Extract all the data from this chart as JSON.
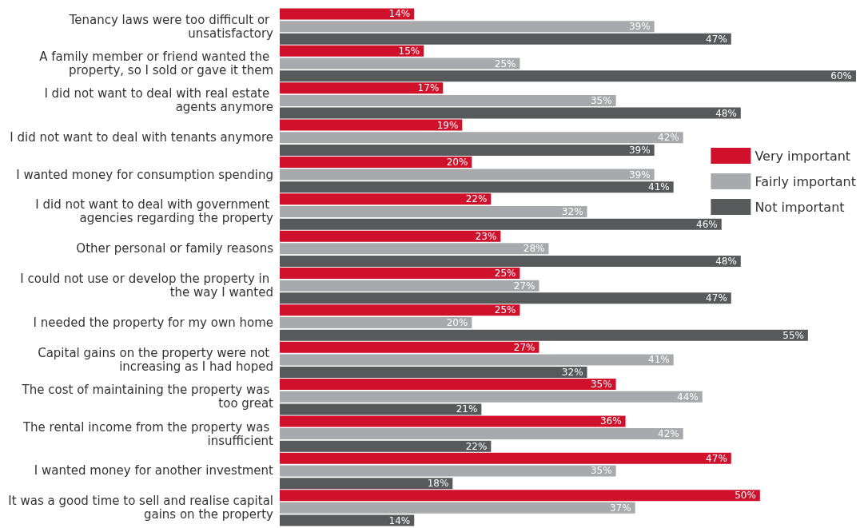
{
  "chart_data": {
    "type": "bar",
    "orientation": "horizontal",
    "legend": "right",
    "categories": [
      "Tenancy laws were too difficult or unsatisfactory",
      "A family member or friend wanted the property, so I sold or gave it them",
      "I did not want to deal with real estate agents anymore",
      "I did not want to deal with tenants anymore",
      "I wanted money for consumption spending",
      "I did not want to deal with government agencies regarding the property",
      "Other personal or family reasons",
      "I could not use or develop the property in the way I wanted",
      "I needed the property for my own home",
      "Capital gains on the property were not increasing as I had hoped",
      "The cost of maintaining the property was too great",
      "The rental income from the property was insufficient",
      "I wanted money for another investment",
      "It was a good time to sell and realise capital gains on the property"
    ],
    "series": [
      {
        "name": "Very important",
        "color": "#d0112b",
        "values": [
          14,
          15,
          17,
          19,
          20,
          22,
          23,
          25,
          25,
          27,
          35,
          36,
          47,
          50
        ],
        "value_labels": [
          "14%",
          "15%",
          "17%",
          "19%",
          "20%",
          "22%",
          "23%",
          "25%",
          "25%",
          "27%",
          "35%",
          "36%",
          "47%",
          "50%"
        ]
      },
      {
        "name": "Fairly important",
        "color": "#a7a9ac",
        "values": [
          39,
          25,
          35,
          42,
          39,
          32,
          28,
          27,
          20,
          41,
          44,
          42,
          35,
          37
        ],
        "value_labels": [
          "39%",
          "25%",
          "35%",
          "42%",
          "39%",
          "32%",
          "28%",
          "27%",
          "20%",
          "41%",
          "44%",
          "42%",
          "35%",
          "37%"
        ]
      },
      {
        "name": "Not important",
        "color": "#58595b",
        "values": [
          47,
          60,
          48,
          39,
          41,
          46,
          48,
          47,
          55,
          32,
          21,
          22,
          18,
          14
        ],
        "value_labels": [
          "47%",
          "60%",
          "48%",
          "39%",
          "41%",
          "46%",
          "48%",
          "47%",
          "55%",
          "32%",
          "21%",
          "22%",
          "18%",
          "14%"
        ]
      }
    ]
  }
}
